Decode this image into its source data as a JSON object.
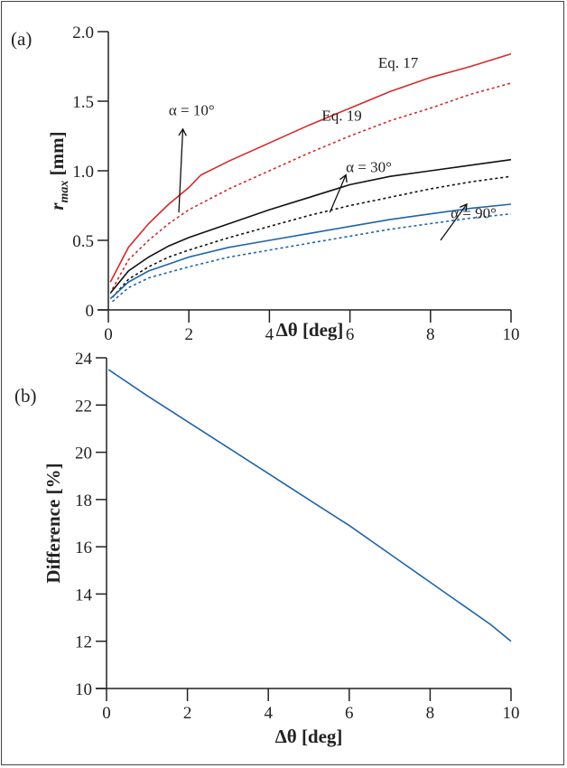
{
  "chart_data": [
    {
      "panel_label": "(a)",
      "type": "line",
      "xlabel": "Δθ [deg]",
      "ylabel": "r_max [mm]",
      "ylabel_main": "r",
      "ylabel_sub": "max",
      "ylabel_unit": " [mm]",
      "xlim": [
        0,
        10
      ],
      "ylim": [
        0,
        2.0
      ],
      "xticks": [
        "0",
        "2",
        "4",
        "6",
        "8",
        "10"
      ],
      "yticks": [
        "0",
        "0.5",
        "1.0",
        "1.5",
        "2.0"
      ],
      "grid": false,
      "series": [
        {
          "color": "#d42a2a",
          "style": "solid",
          "x": [
            0.05,
            0.5,
            1,
            1.5,
            2,
            2.3,
            3,
            4,
            5,
            6,
            7,
            8,
            9,
            10
          ],
          "y": [
            0.2,
            0.45,
            0.62,
            0.76,
            0.88,
            0.97,
            1.07,
            1.2,
            1.33,
            1.45,
            1.57,
            1.67,
            1.75,
            1.84
          ]
        },
        {
          "color": "#d42a2a",
          "style": "dotted",
          "x": [
            0.1,
            0.5,
            1,
            1.5,
            2,
            3,
            4,
            5,
            6,
            7,
            8,
            9,
            10
          ],
          "y": [
            0.15,
            0.36,
            0.5,
            0.62,
            0.72,
            0.87,
            1.0,
            1.13,
            1.25,
            1.36,
            1.45,
            1.55,
            1.63
          ]
        },
        {
          "color": "#111111",
          "style": "solid",
          "x": [
            0.05,
            0.5,
            1,
            1.5,
            2,
            3,
            4,
            5,
            6,
            7,
            8,
            9,
            10
          ],
          "y": [
            0.12,
            0.28,
            0.38,
            0.46,
            0.52,
            0.62,
            0.72,
            0.81,
            0.9,
            0.96,
            1.0,
            1.04,
            1.08
          ]
        },
        {
          "color": "#111111",
          "style": "dotted",
          "x": [
            0.1,
            0.5,
            1,
            1.5,
            2,
            3,
            4,
            5,
            6,
            7,
            8,
            9,
            10
          ],
          "y": [
            0.09,
            0.22,
            0.31,
            0.38,
            0.43,
            0.52,
            0.6,
            0.68,
            0.75,
            0.81,
            0.87,
            0.92,
            0.96
          ]
        },
        {
          "color": "#1f64a8",
          "style": "solid",
          "x": [
            0.05,
            0.5,
            1,
            1.5,
            2,
            3,
            4,
            5,
            6,
            7,
            8,
            9,
            10
          ],
          "y": [
            0.08,
            0.2,
            0.28,
            0.33,
            0.38,
            0.45,
            0.5,
            0.55,
            0.6,
            0.65,
            0.69,
            0.73,
            0.76
          ]
        },
        {
          "color": "#1f64a8",
          "style": "dotted",
          "x": [
            0.1,
            0.5,
            1,
            1.5,
            2,
            3,
            4,
            5,
            6,
            7,
            8,
            9,
            10
          ],
          "y": [
            0.06,
            0.16,
            0.23,
            0.27,
            0.31,
            0.38,
            0.43,
            0.48,
            0.53,
            0.58,
            0.62,
            0.66,
            0.69
          ]
        }
      ],
      "annotations": [
        {
          "text": "Eq. 17",
          "x": 6.7,
          "y": 1.74
        },
        {
          "text": "Eq. 19",
          "x": 5.3,
          "y": 1.36
        },
        {
          "text": "α = 10°",
          "x": 1.5,
          "y": 1.4,
          "arrow_from": [
            1.75,
            0.7
          ],
          "arrow_to": [
            1.85,
            1.3
          ]
        },
        {
          "text": "α = 30°",
          "x": 5.9,
          "y": 0.99,
          "arrow_from": [
            5.5,
            0.7
          ],
          "arrow_to": [
            5.9,
            0.97
          ]
        },
        {
          "text": "α = 90°",
          "x": 8.5,
          "y": 0.66,
          "arrow_from": [
            8.25,
            0.5
          ],
          "arrow_to": [
            8.9,
            0.76
          ]
        }
      ]
    },
    {
      "panel_label": "(b)",
      "type": "line",
      "xlabel": "Δθ [deg]",
      "ylabel": "Difference [%]",
      "xlim": [
        0,
        10
      ],
      "ylim": [
        10,
        24
      ],
      "xticks": [
        "0",
        "2",
        "4",
        "6",
        "8",
        "10"
      ],
      "yticks": [
        "10",
        "12",
        "14",
        "16",
        "18",
        "20",
        "22",
        "24"
      ],
      "grid": false,
      "series": [
        {
          "color": "#1f64a8",
          "style": "solid",
          "x": [
            0.05,
            1,
            2,
            3,
            4,
            5,
            6,
            7,
            8,
            9,
            9.5,
            10
          ],
          "y": [
            23.5,
            22.4,
            21.3,
            20.2,
            19.1,
            18.0,
            16.9,
            15.7,
            14.5,
            13.3,
            12.7,
            12.0
          ]
        }
      ]
    }
  ]
}
